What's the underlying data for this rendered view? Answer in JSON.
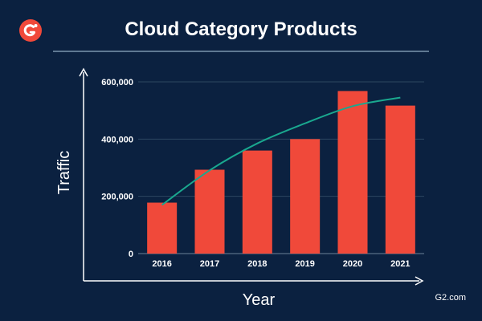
{
  "brand": {
    "logo_text": "G2",
    "logo_color": "#f0493a",
    "source_label": "G2.com"
  },
  "colors": {
    "background": "#0b2140",
    "bar": "#f0493a",
    "trendline": "#1aa88f",
    "gridline": "#2c4660",
    "text": "#ffffff"
  },
  "chart_data": {
    "type": "bar",
    "title": "Cloud Category Products",
    "xlabel": "Year",
    "ylabel": "Traffic",
    "categories": [
      "2016",
      "2017",
      "2018",
      "2019",
      "2020",
      "2021"
    ],
    "values": [
      178000,
      293000,
      360000,
      400000,
      568000,
      517000
    ],
    "ylim": [
      0,
      600000
    ],
    "yticks": [
      0,
      200000,
      400000,
      600000
    ],
    "ytick_labels": [
      "0",
      "200,000",
      "400,000",
      "600,000"
    ],
    "grid": true,
    "legend": "none",
    "trendline": {
      "type": "curve",
      "x": [
        "2016",
        "2017",
        "2018",
        "2019",
        "2020",
        "2021"
      ],
      "values": [
        170000,
        291000,
        385000,
        455000,
        515000,
        545000
      ]
    }
  }
}
